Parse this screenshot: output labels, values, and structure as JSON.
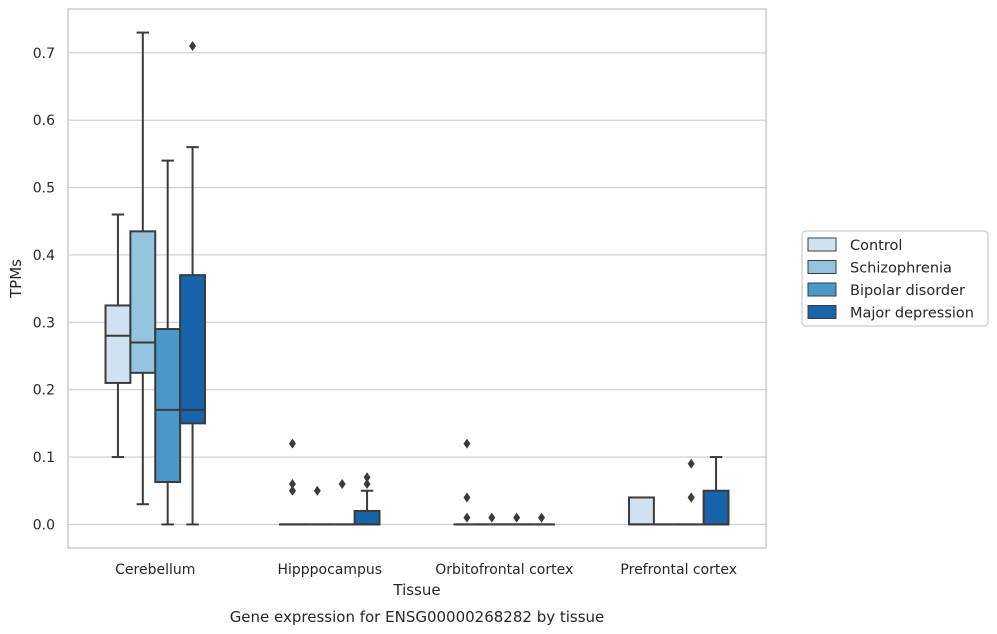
{
  "chart_data": {
    "type": "box",
    "ylabel": "TPMs",
    "xlabel": "Tissue",
    "caption": "Gene expression for ENSG00000268282 by tissue",
    "ylim": [
      -0.035,
      0.765
    ],
    "yticks": [
      0.0,
      0.1,
      0.2,
      0.3,
      0.4,
      0.5,
      0.6,
      0.7
    ],
    "ytick_labels": [
      "0.0",
      "0.1",
      "0.2",
      "0.3",
      "0.4",
      "0.5",
      "0.6",
      "0.7"
    ],
    "grid": "horizontal",
    "legend_position": "right",
    "categories": [
      "Cerebellum",
      "Hipppocampus",
      "Orbitofrontal cortex",
      "Prefrontal cortex"
    ],
    "series": [
      {
        "name": "Control",
        "color": "#d0e1f2",
        "boxes": [
          {
            "q1": 0.21,
            "median": 0.28,
            "q3": 0.325,
            "whisker_low": 0.1,
            "whisker_high": 0.46,
            "outliers": []
          },
          {
            "q1": 0.0,
            "median": 0.0,
            "q3": 0.0,
            "whisker_low": 0.0,
            "whisker_high": 0.0,
            "outliers": [
              0.12,
              0.06,
              0.05
            ]
          },
          {
            "q1": 0.0,
            "median": 0.0,
            "q3": 0.0,
            "whisker_low": 0.0,
            "whisker_high": 0.0,
            "outliers": [
              0.12,
              0.04,
              0.01
            ]
          },
          {
            "q1": 0.0,
            "median": 0.0,
            "q3": 0.04,
            "whisker_low": 0.0,
            "whisker_high": 0.04,
            "outliers": []
          }
        ]
      },
      {
        "name": "Schizophrenia",
        "color": "#94c4df",
        "boxes": [
          {
            "q1": 0.225,
            "median": 0.27,
            "q3": 0.435,
            "whisker_low": 0.03,
            "whisker_high": 0.73,
            "outliers": []
          },
          {
            "q1": 0.0,
            "median": 0.0,
            "q3": 0.0,
            "whisker_low": 0.0,
            "whisker_high": 0.0,
            "outliers": [
              0.05
            ]
          },
          {
            "q1": 0.0,
            "median": 0.0,
            "q3": 0.0,
            "whisker_low": 0.0,
            "whisker_high": 0.0,
            "outliers": [
              0.01
            ]
          },
          {
            "q1": 0.0,
            "median": 0.0,
            "q3": 0.0,
            "whisker_low": 0.0,
            "whisker_high": 0.0,
            "outliers": []
          }
        ]
      },
      {
        "name": "Bipolar disorder",
        "color": "#4a98c9",
        "boxes": [
          {
            "q1": 0.063,
            "median": 0.17,
            "q3": 0.29,
            "whisker_low": 0.0,
            "whisker_high": 0.54,
            "outliers": []
          },
          {
            "q1": 0.0,
            "median": 0.0,
            "q3": 0.0,
            "whisker_low": 0.0,
            "whisker_high": 0.0,
            "outliers": [
              0.06
            ]
          },
          {
            "q1": 0.0,
            "median": 0.0,
            "q3": 0.0,
            "whisker_low": 0.0,
            "whisker_high": 0.0,
            "outliers": [
              0.01
            ]
          },
          {
            "q1": 0.0,
            "median": 0.0,
            "q3": 0.0,
            "whisker_low": 0.0,
            "whisker_high": 0.0,
            "outliers": [
              0.04,
              0.04,
              0.09
            ]
          }
        ]
      },
      {
        "name": "Major depression",
        "color": "#1764ab",
        "boxes": [
          {
            "q1": 0.15,
            "median": 0.17,
            "q3": 0.37,
            "whisker_low": 0.0,
            "whisker_high": 0.56,
            "outliers": [
              0.71
            ]
          },
          {
            "q1": 0.0,
            "median": 0.0,
            "q3": 0.02,
            "whisker_low": 0.0,
            "whisker_high": 0.05,
            "outliers": [
              0.07,
              0.06
            ]
          },
          {
            "q1": 0.0,
            "median": 0.0,
            "q3": 0.0,
            "whisker_low": 0.0,
            "whisker_high": 0.0,
            "outliers": [
              0.01
            ]
          },
          {
            "q1": 0.0,
            "median": 0.0,
            "q3": 0.05,
            "whisker_low": 0.0,
            "whisker_high": 0.1,
            "outliers": []
          }
        ]
      }
    ]
  }
}
